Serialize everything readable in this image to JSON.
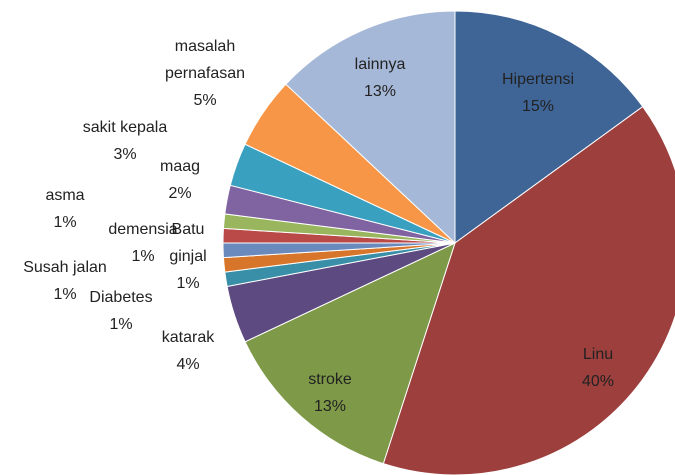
{
  "chart_data": {
    "type": "pie",
    "categories": [
      "Hipertensi",
      "Linu",
      "stroke",
      "katarak",
      "Diabetes",
      "Susah jalan",
      "Batu ginjal",
      "demensia",
      "asma",
      "maag",
      "sakit kepala",
      "masalah pernafasan",
      "lainnya"
    ],
    "values": [
      15,
      40,
      13,
      4,
      1,
      1,
      1,
      1,
      1,
      2,
      3,
      5,
      13
    ],
    "value_labels": [
      "15%",
      "40%",
      "13%",
      "4%",
      "1%",
      "1%",
      "1%",
      "1%",
      "1%",
      "2%",
      "3%",
      "5%",
      "13%"
    ],
    "colors": [
      "#3f6597",
      "#9c3f3d",
      "#7e9a48",
      "#5d4a80",
      "#3a8fa8",
      "#d7762b",
      "#6a89bc",
      "#b94a48",
      "#99b55d",
      "#8063a1",
      "#39a1bf",
      "#f79646",
      "#a6b8d8"
    ]
  }
}
